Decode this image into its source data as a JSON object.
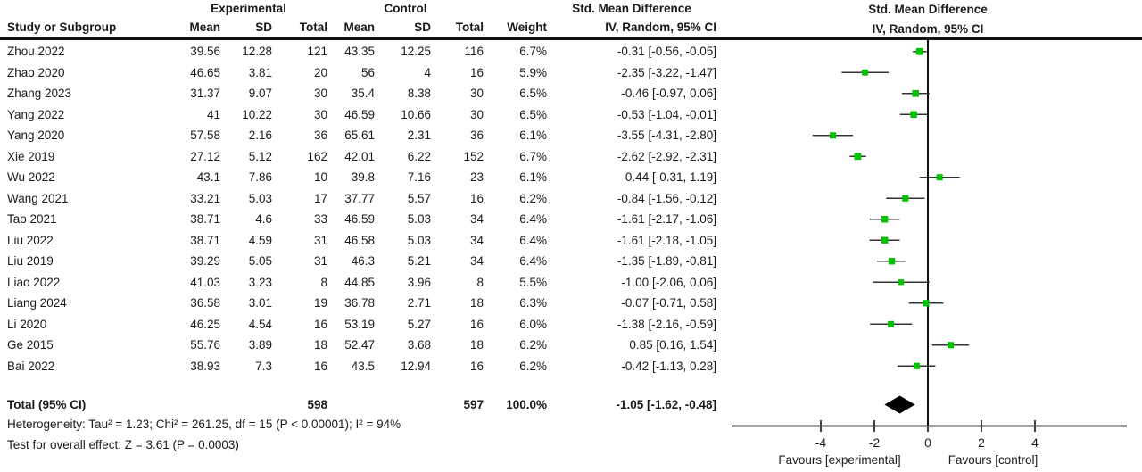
{
  "colors": {
    "marker": "#00C300",
    "ci_line": "#333333",
    "diamond": "#000000",
    "axis": "#111111",
    "text": "#1a1a1a"
  },
  "chart_data": {
    "type": "forest",
    "groups": {
      "experimental": "Experimental",
      "control": "Control",
      "smd": "Std. Mean Difference"
    },
    "columns": {
      "study": "Study or Subgroup",
      "mean": "Mean",
      "sd": "SD",
      "total": "Total",
      "weight": "Weight",
      "ci": "IV, Random, 95% CI"
    },
    "plot_title_1": "Std. Mean Difference",
    "plot_title_2": "IV, Random, 95% CI",
    "studies": [
      {
        "label": "Zhou 2022",
        "mean_e": "39.56",
        "sd_e": "12.28",
        "n_e": "121",
        "mean_c": "43.35",
        "sd_c": "12.25",
        "n_c": "116",
        "weight": "6.7%",
        "ci": "-0.31 [-0.56, -0.05]",
        "est": -0.31,
        "lo": -0.56,
        "hi": -0.05
      },
      {
        "label": "Zhao 2020",
        "mean_e": "46.65",
        "sd_e": "3.81",
        "n_e": "20",
        "mean_c": "56",
        "sd_c": "4",
        "n_c": "16",
        "weight": "5.9%",
        "ci": "-2.35 [-3.22, -1.47]",
        "est": -2.35,
        "lo": -3.22,
        "hi": -1.47
      },
      {
        "label": "Zhang 2023",
        "mean_e": "31.37",
        "sd_e": "9.07",
        "n_e": "30",
        "mean_c": "35.4",
        "sd_c": "8.38",
        "n_c": "30",
        "weight": "6.5%",
        "ci": "-0.46 [-0.97, 0.06]",
        "est": -0.46,
        "lo": -0.97,
        "hi": 0.06
      },
      {
        "label": "Yang 2022",
        "mean_e": "41",
        "sd_e": "10.22",
        "n_e": "30",
        "mean_c": "46.59",
        "sd_c": "10.66",
        "n_c": "30",
        "weight": "6.5%",
        "ci": "-0.53 [-1.04, -0.01]",
        "est": -0.53,
        "lo": -1.04,
        "hi": -0.01
      },
      {
        "label": "Yang 2020",
        "mean_e": "57.58",
        "sd_e": "2.16",
        "n_e": "36",
        "mean_c": "65.61",
        "sd_c": "2.31",
        "n_c": "36",
        "weight": "6.1%",
        "ci": "-3.55 [-4.31, -2.80]",
        "est": -3.55,
        "lo": -4.31,
        "hi": -2.8
      },
      {
        "label": "Xie 2019",
        "mean_e": "27.12",
        "sd_e": "5.12",
        "n_e": "162",
        "mean_c": "42.01",
        "sd_c": "6.22",
        "n_c": "152",
        "weight": "6.7%",
        "ci": "-2.62 [-2.92, -2.31]",
        "est": -2.62,
        "lo": -2.92,
        "hi": -2.31
      },
      {
        "label": "Wu 2022",
        "mean_e": "43.1",
        "sd_e": "7.86",
        "n_e": "10",
        "mean_c": "39.8",
        "sd_c": "7.16",
        "n_c": "23",
        "weight": "6.1%",
        "ci": "0.44 [-0.31, 1.19]",
        "est": 0.44,
        "lo": -0.31,
        "hi": 1.19
      },
      {
        "label": "Wang 2021",
        "mean_e": "33.21",
        "sd_e": "5.03",
        "n_e": "17",
        "mean_c": "37.77",
        "sd_c": "5.57",
        "n_c": "16",
        "weight": "6.2%",
        "ci": "-0.84 [-1.56, -0.12]",
        "est": -0.84,
        "lo": -1.56,
        "hi": -0.12
      },
      {
        "label": "Tao 2021",
        "mean_e": "38.71",
        "sd_e": "4.6",
        "n_e": "33",
        "mean_c": "46.59",
        "sd_c": "5.03",
        "n_c": "34",
        "weight": "6.4%",
        "ci": "-1.61 [-2.17, -1.06]",
        "est": -1.61,
        "lo": -2.17,
        "hi": -1.06
      },
      {
        "label": "Liu 2022",
        "mean_e": "38.71",
        "sd_e": "4.59",
        "n_e": "31",
        "mean_c": "46.58",
        "sd_c": "5.03",
        "n_c": "34",
        "weight": "6.4%",
        "ci": "-1.61 [-2.18, -1.05]",
        "est": -1.61,
        "lo": -2.18,
        "hi": -1.05
      },
      {
        "label": "Liu 2019",
        "mean_e": "39.29",
        "sd_e": "5.05",
        "n_e": "31",
        "mean_c": "46.3",
        "sd_c": "5.21",
        "n_c": "34",
        "weight": "6.4%",
        "ci": "-1.35 [-1.89, -0.81]",
        "est": -1.35,
        "lo": -1.89,
        "hi": -0.81
      },
      {
        "label": "Liao 2022",
        "mean_e": "41.03",
        "sd_e": "3.23",
        "n_e": "8",
        "mean_c": "44.85",
        "sd_c": "3.96",
        "n_c": "8",
        "weight": "5.5%",
        "ci": "-1.00 [-2.06, 0.06]",
        "est": -1.0,
        "lo": -2.06,
        "hi": 0.06
      },
      {
        "label": "Liang 2024",
        "mean_e": "36.58",
        "sd_e": "3.01",
        "n_e": "19",
        "mean_c": "36.78",
        "sd_c": "2.71",
        "n_c": "18",
        "weight": "6.3%",
        "ci": "-0.07 [-0.71, 0.58]",
        "est": -0.07,
        "lo": -0.71,
        "hi": 0.58
      },
      {
        "label": "Li 2020",
        "mean_e": "46.25",
        "sd_e": "4.54",
        "n_e": "16",
        "mean_c": "53.19",
        "sd_c": "5.27",
        "n_c": "16",
        "weight": "6.0%",
        "ci": "-1.38 [-2.16, -0.59]",
        "est": -1.38,
        "lo": -2.16,
        "hi": -0.59
      },
      {
        "label": "Ge 2015",
        "mean_e": "55.76",
        "sd_e": "3.89",
        "n_e": "18",
        "mean_c": "52.47",
        "sd_c": "3.68",
        "n_c": "18",
        "weight": "6.2%",
        "ci": "0.85 [0.16, 1.54]",
        "est": 0.85,
        "lo": 0.16,
        "hi": 1.54
      },
      {
        "label": "Bai 2022",
        "mean_e": "38.93",
        "sd_e": "7.3",
        "n_e": "16",
        "mean_c": "43.5",
        "sd_c": "12.94",
        "n_c": "16",
        "weight": "6.2%",
        "ci": "-0.42 [-1.13, 0.28]",
        "est": -0.42,
        "lo": -1.13,
        "hi": 0.28
      }
    ],
    "total": {
      "label": "Total (95% CI)",
      "n_e": "598",
      "n_c": "597",
      "weight": "100.0%",
      "ci": "-1.05 [-1.62, -0.48]",
      "est": -1.05,
      "lo": -1.62,
      "hi": -0.48
    },
    "heterogeneity": "Heterogeneity: Tau² = 1.23; Chi² = 261.25, df = 15 (P < 0.00001); I² = 94%",
    "overall_effect": "Test for overall effect: Z = 3.61 (P = 0.0003)",
    "axis": {
      "ticks": [
        -4,
        -2,
        0,
        2,
        4
      ],
      "xlim": [
        -7.3,
        7.5
      ],
      "favours_left": "Favours [experimental]",
      "favours_right": "Favours [control]"
    }
  }
}
